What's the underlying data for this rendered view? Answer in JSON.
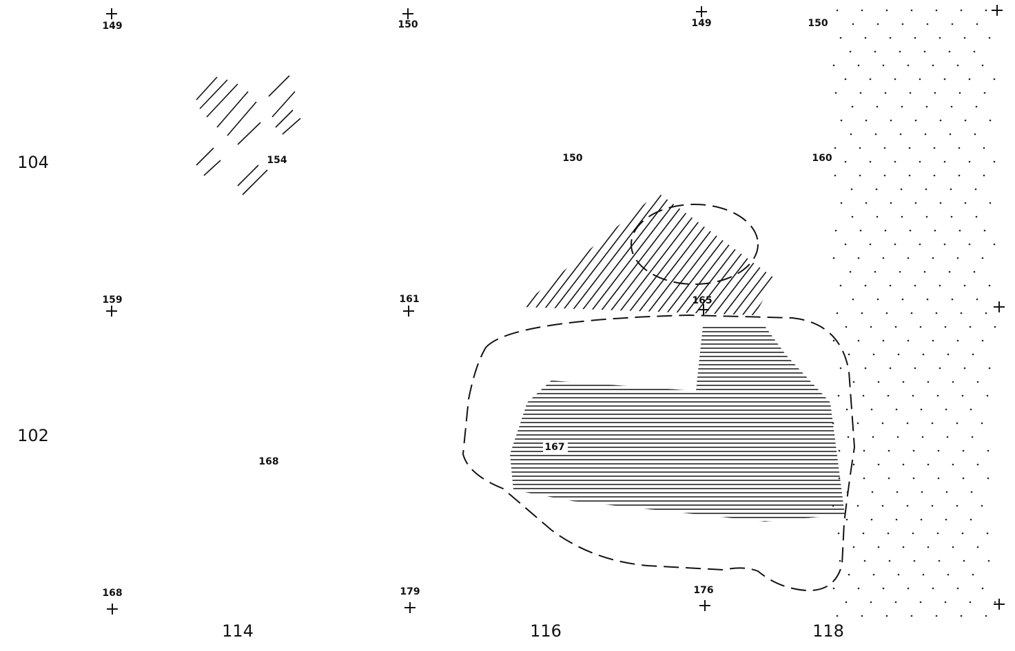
{
  "grid_crosses": {
    "labels": [
      "149",
      "150",
      "149",
      "159",
      "161",
      "165",
      "168",
      "179",
      "176"
    ]
  },
  "spot_heights": [
    "150",
    "154",
    "150",
    "160",
    "168",
    "167"
  ],
  "northings": [
    "104",
    "102"
  ],
  "eastings": [
    "114",
    "116",
    "118"
  ]
}
